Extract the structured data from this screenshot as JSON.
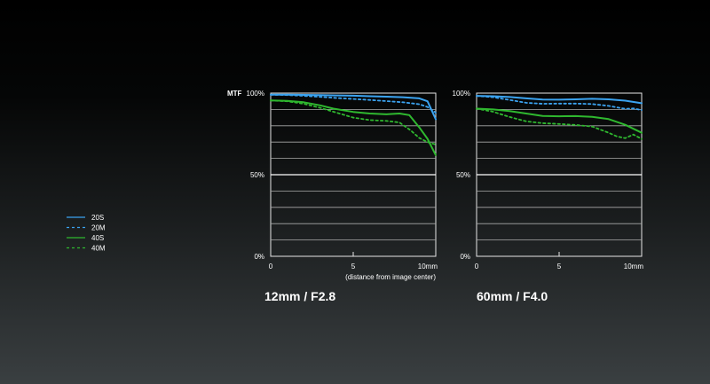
{
  "legend": [
    {
      "name": "20S",
      "color": "#3ba3f0",
      "dash": false
    },
    {
      "name": "20M",
      "color": "#3ba3f0",
      "dash": true
    },
    {
      "name": "40S",
      "color": "#2fb82f",
      "dash": false
    },
    {
      "name": "40M",
      "color": "#2fb82f",
      "dash": true
    }
  ],
  "chart_data": [
    {
      "type": "line",
      "title": "12mm / F2.8",
      "ylabel": "MTF",
      "xlabel": "(distance from image center)",
      "x_ticks": [
        "0",
        "5",
        "10mm"
      ],
      "y_ticks": [
        "0%",
        "50%",
        "100%"
      ],
      "xlim": [
        0,
        10
      ],
      "ylim": [
        0,
        100
      ],
      "grid": true,
      "series": [
        {
          "name": "20S",
          "color": "#3ba3f0",
          "dash": false,
          "x": [
            0,
            1,
            2,
            3,
            4,
            5,
            6,
            7,
            8,
            9,
            9.5,
            10
          ],
          "y": [
            99,
            99,
            98.9,
            98.8,
            98.6,
            98.4,
            98.1,
            97.8,
            97.5,
            96.8,
            95,
            84
          ]
        },
        {
          "name": "20M",
          "color": "#3ba3f0",
          "dash": true,
          "x": [
            0,
            1,
            2,
            3,
            4,
            5,
            6,
            7,
            8,
            9,
            9.5,
            10
          ],
          "y": [
            99,
            98.8,
            98.3,
            97.7,
            97,
            96.4,
            95.8,
            95.1,
            94.4,
            93.2,
            91.5,
            88
          ]
        },
        {
          "name": "40S",
          "color": "#2fb82f",
          "dash": false,
          "x": [
            0,
            1,
            2,
            3,
            3.8,
            5,
            6,
            7,
            7.8,
            8.4,
            9,
            9.5,
            10
          ],
          "y": [
            95.5,
            95.2,
            94.4,
            92.5,
            90.5,
            88.5,
            87.5,
            87,
            87.5,
            86.5,
            79,
            72,
            62
          ]
        },
        {
          "name": "40M",
          "color": "#2fb82f",
          "dash": true,
          "x": [
            0,
            1,
            2,
            3,
            4,
            5,
            6,
            7,
            7.8,
            8.5,
            9,
            9.5,
            10
          ],
          "y": [
            95.5,
            95,
            93.5,
            91,
            88,
            85,
            83.5,
            83,
            82,
            77,
            72.5,
            70,
            68.5
          ]
        }
      ]
    },
    {
      "type": "line",
      "title": "60mm / F4.0",
      "x_ticks": [
        "0",
        "5",
        "10mm"
      ],
      "y_ticks": [
        "0%",
        "50%",
        "100%"
      ],
      "xlim": [
        0,
        10
      ],
      "ylim": [
        0,
        100
      ],
      "grid": true,
      "series": [
        {
          "name": "20S",
          "color": "#3ba3f0",
          "dash": false,
          "x": [
            0,
            1,
            2,
            3,
            4,
            5,
            6,
            7,
            8,
            9,
            10
          ],
          "y": [
            98.3,
            98.1,
            97.6,
            96.8,
            96.1,
            96,
            96.2,
            96.5,
            96.2,
            95.4,
            93.8
          ]
        },
        {
          "name": "20M",
          "color": "#3ba3f0",
          "dash": true,
          "x": [
            0,
            1,
            2,
            3,
            4,
            5,
            6,
            7,
            8,
            9,
            9.5,
            10
          ],
          "y": [
            98.3,
            97.5,
            95.8,
            94.1,
            93.5,
            93.6,
            93.6,
            93.3,
            92.2,
            90.4,
            90.6,
            89.6
          ]
        },
        {
          "name": "40S",
          "color": "#2fb82f",
          "dash": false,
          "x": [
            0,
            1,
            2,
            3,
            4,
            5,
            6,
            7,
            8,
            9,
            10
          ],
          "y": [
            90.5,
            90,
            89,
            87.5,
            86,
            85.8,
            85.9,
            85.5,
            84.1,
            80.6,
            75.7
          ]
        },
        {
          "name": "40M",
          "color": "#2fb82f",
          "dash": true,
          "x": [
            0,
            1,
            2,
            3,
            4,
            5,
            6,
            7,
            8,
            8.5,
            9,
            9.5,
            10
          ],
          "y": [
            90.5,
            88.6,
            85.4,
            82.7,
            81.6,
            81.1,
            80.5,
            79.5,
            75.7,
            73.5,
            72.4,
            74.6,
            71.9
          ]
        }
      ]
    }
  ]
}
